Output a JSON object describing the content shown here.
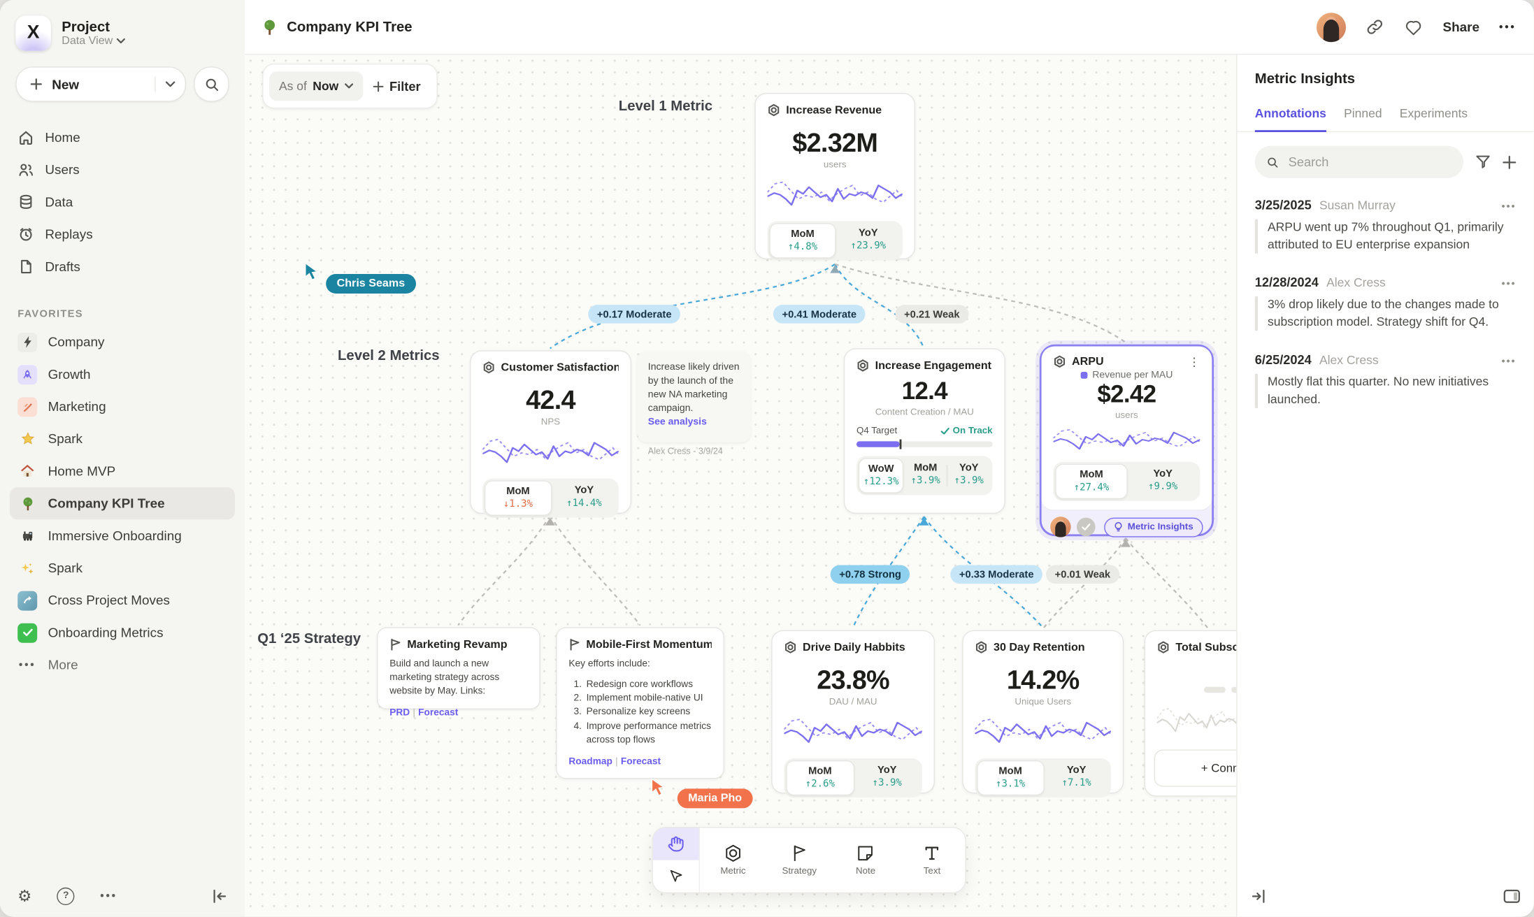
{
  "sidebar": {
    "project_title": "Project",
    "project_subtitle": "Data View",
    "new_label": "New",
    "nav": [
      {
        "label": "Home"
      },
      {
        "label": "Users"
      },
      {
        "label": "Data"
      },
      {
        "label": "Replays"
      },
      {
        "label": "Drafts"
      }
    ],
    "favorites_heading": "FAVORITES",
    "favorites": [
      {
        "label": "Company"
      },
      {
        "label": "Growth"
      },
      {
        "label": "Marketing"
      },
      {
        "label": "Spark"
      },
      {
        "label": "Home MVP"
      },
      {
        "label": "Company KPI Tree"
      },
      {
        "label": "Immersive Onboarding"
      },
      {
        "label": "Spark"
      },
      {
        "label": "Cross Project Moves"
      },
      {
        "label": "Onboarding Metrics"
      }
    ],
    "more_label": "More"
  },
  "topbar": {
    "title": "Company KPI Tree",
    "share_label": "Share"
  },
  "canvas": {
    "asof_prefix": "As of",
    "asof_value": "Now",
    "filter_label": "Filter",
    "labels": {
      "level1": "Level 1 Metric",
      "level2": "Level 2 Metrics",
      "strategy": "Q1 ‘25 Strategy"
    },
    "cursors": {
      "chris": "Chris Seams",
      "maria": "Maria Pho"
    },
    "edges": {
      "e1": "+0.17 Moderate",
      "e2": "+0.41 Moderate",
      "e3": "+0.21 Weak",
      "e4": "+0.78 Strong",
      "e5": "+0.33 Moderate",
      "e6": "+0.01 Weak"
    },
    "cards": {
      "revenue": {
        "title": "Increase Revenue",
        "value": "$2.32M",
        "unit": "users",
        "stats": [
          {
            "label": "MoM",
            "value": "↑4.8%"
          },
          {
            "label": "YoY",
            "value": "↑23.9%"
          }
        ]
      },
      "satisfaction": {
        "title": "Customer Satisfaction",
        "value": "42.4",
        "unit": "NPS",
        "stats": [
          {
            "label": "MoM",
            "value": "↓1.3%"
          },
          {
            "label": "YoY",
            "value": "↑14.4%"
          }
        ]
      },
      "note": {
        "text": "Increase likely driven by the launch of the new NA marketing campaign.",
        "link": "See analysis",
        "byline": "Alex Cress - 3/9/24"
      },
      "engagement": {
        "title": "Increase Engagement",
        "value": "12.4",
        "unit": "Content Creation / MAU",
        "target_label": "Q4 Target",
        "target_status": "On Track",
        "stats": [
          {
            "label": "WoW",
            "value": "↑12.3%"
          },
          {
            "label": "MoM",
            "value": "↑3.9%"
          },
          {
            "label": "YoY",
            "value": "↑3.9%"
          }
        ]
      },
      "arpu": {
        "title": "ARPU",
        "legend": "Revenue per MAU",
        "value": "$2.42",
        "unit": "users",
        "stats": [
          {
            "label": "MoM",
            "value": "↑27.4%"
          },
          {
            "label": "YoY",
            "value": "↑9.9%"
          }
        ],
        "badge": "Metric Insights"
      },
      "marketing": {
        "title": "Marketing Revamp",
        "body": "Build and launch a new marketing strategy across website by May. Links:",
        "link1": "PRD",
        "link2": "Forecast"
      },
      "mobile": {
        "title": "Mobile-First Momentum",
        "intro": "Key efforts include:",
        "items": [
          "Redesign core workflows",
          "Implement mobile-native UI",
          "Personalize key screens",
          "Improve performance metrics across top flows"
        ],
        "link1": "Roadmap",
        "link2": "Forecast"
      },
      "habits": {
        "title": "Drive Daily Habbits",
        "value": "23.8%",
        "unit": "DAU / MAU",
        "stats": [
          {
            "label": "MoM",
            "value": "↑2.6%"
          },
          {
            "label": "YoY",
            "value": "↑3.9%"
          }
        ]
      },
      "retention": {
        "title": "30 Day Retention",
        "value": "14.2%",
        "unit": "Unique Users",
        "stats": [
          {
            "label": "MoM",
            "value": "↑3.1%"
          },
          {
            "label": "YoY",
            "value": "↑7.1%"
          }
        ]
      },
      "subscriptions": {
        "title": "Total Subscript",
        "connect_label": "+ Connect"
      }
    }
  },
  "toolbar": {
    "tools": [
      {
        "label": "Metric"
      },
      {
        "label": "Strategy"
      },
      {
        "label": "Note"
      },
      {
        "label": "Text"
      }
    ]
  },
  "panel": {
    "title": "Metric Insights",
    "tabs": [
      {
        "label": "Annotations"
      },
      {
        "label": "Pinned"
      },
      {
        "label": "Experiments"
      }
    ],
    "search_placeholder": "Search",
    "annotations": [
      {
        "date": "3/25/2025",
        "author": "Susan Murray",
        "text": "ARPU went up 7% throughout Q1, primarily attributed to EU enterprise expansion"
      },
      {
        "date": "12/28/2024",
        "author": "Alex Cress",
        "text": "3% drop likely due to the changes made to subscription model. Strategy shift for Q4."
      },
      {
        "date": "6/25/2024",
        "author": "Alex Cress",
        "text": "Mostly flat this quarter. No new initiatives launched."
      }
    ]
  }
}
